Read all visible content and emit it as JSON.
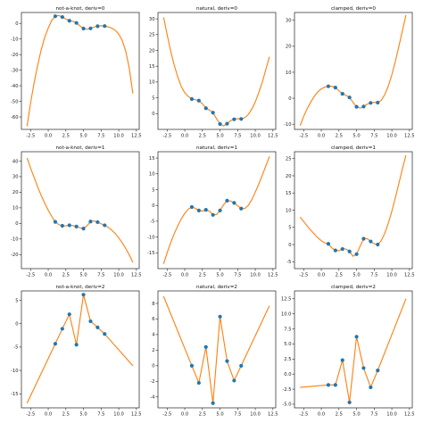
{
  "colors": {
    "curve": "#ff7f0e",
    "points": "#1f77b4",
    "frame": "#222222"
  },
  "chart_data": [
    {
      "type": "line",
      "title": "not-a-knot, deriv=0",
      "xticks": [
        -2.5,
        0.0,
        2.5,
        5.0,
        7.5,
        10.0,
        12.5
      ],
      "yticks": [
        -60,
        -50,
        -40,
        -30,
        -20,
        -10,
        0
      ],
      "xlim": [
        -3.8,
        12.9
      ],
      "ylim": [
        -68,
        7
      ],
      "points": [
        [
          1,
          4.6
        ],
        [
          2,
          4.1
        ],
        [
          3,
          1.7
        ],
        [
          4,
          0.3
        ],
        [
          5,
          -3.3
        ],
        [
          6,
          -3.2
        ],
        [
          7,
          -1.8
        ],
        [
          8,
          -1.7
        ]
      ],
      "curve": [
        [
          -3,
          -66
        ],
        [
          -2.5,
          -51
        ],
        [
          -2,
          -38
        ],
        [
          -1.5,
          -27
        ],
        [
          -1,
          -17
        ],
        [
          -0.5,
          -9
        ],
        [
          0,
          -3
        ],
        [
          0.5,
          2
        ],
        [
          1,
          4.6
        ],
        [
          1.5,
          5.1
        ],
        [
          2,
          4.1
        ],
        [
          2.5,
          2.8
        ],
        [
          3,
          1.7
        ],
        [
          3.5,
          1.3
        ],
        [
          4,
          0.3
        ],
        [
          4.5,
          -1.6
        ],
        [
          5,
          -3.3
        ],
        [
          5.5,
          -3.8
        ],
        [
          6,
          -3.2
        ],
        [
          6.5,
          -2.3
        ],
        [
          7,
          -1.8
        ],
        [
          7.5,
          -1.5
        ],
        [
          8,
          -1.7
        ],
        [
          8.5,
          -2.2
        ],
        [
          9,
          -3
        ],
        [
          9.5,
          -4.4
        ],
        [
          10,
          -6.9
        ],
        [
          10.5,
          -11
        ],
        [
          11,
          -18
        ],
        [
          11.5,
          -29
        ],
        [
          12,
          -45
        ]
      ]
    },
    {
      "type": "line",
      "title": "natural, deriv=0",
      "xticks": [
        -2.5,
        0.0,
        2.5,
        5.0,
        7.5,
        10.0,
        12.5
      ],
      "yticks": [
        0,
        5,
        10,
        15,
        20,
        25,
        30
      ],
      "xlim": [
        -3.8,
        12.9
      ],
      "ylim": [
        -5,
        32
      ],
      "points": [
        [
          1,
          4.6
        ],
        [
          2,
          4.1
        ],
        [
          3,
          1.7
        ],
        [
          4,
          0.3
        ],
        [
          5,
          -3.3
        ],
        [
          6,
          -3.2
        ],
        [
          7,
          -1.8
        ],
        [
          8,
          -1.7
        ]
      ],
      "curve": [
        [
          -3,
          30.5
        ],
        [
          -2.5,
          25
        ],
        [
          -2,
          19.8
        ],
        [
          -1.5,
          15.4
        ],
        [
          -1,
          11.6
        ],
        [
          -0.5,
          8.6
        ],
        [
          0,
          6.6
        ],
        [
          0.5,
          5.4
        ],
        [
          1,
          4.6
        ],
        [
          1.5,
          4.4
        ],
        [
          2,
          4.1
        ],
        [
          2.5,
          3.1
        ],
        [
          3,
          1.7
        ],
        [
          3.5,
          1.1
        ],
        [
          4,
          0.3
        ],
        [
          4.5,
          -1.6
        ],
        [
          5,
          -3.3
        ],
        [
          5.5,
          -3.9
        ],
        [
          6,
          -3.2
        ],
        [
          6.5,
          -2.2
        ],
        [
          7,
          -1.8
        ],
        [
          7.5,
          -1.6
        ],
        [
          8,
          -1.7
        ],
        [
          8.5,
          -1.3
        ],
        [
          9,
          -0.3
        ],
        [
          9.5,
          1.4
        ],
        [
          10,
          3.7
        ],
        [
          10.5,
          6.7
        ],
        [
          11,
          10
        ],
        [
          11.5,
          14
        ],
        [
          12,
          18
        ]
      ]
    },
    {
      "type": "line",
      "title": "clamped, deriv=0",
      "xticks": [
        -2.5,
        0.0,
        2.5,
        5.0,
        7.5,
        10.0,
        12.5
      ],
      "yticks": [
        -10,
        0,
        10,
        20,
        30
      ],
      "xlim": [
        -3.8,
        12.9
      ],
      "ylim": [
        -12,
        33
      ],
      "points": [
        [
          1,
          4.6
        ],
        [
          2,
          4.1
        ],
        [
          3,
          1.7
        ],
        [
          4,
          0.3
        ],
        [
          5,
          -3.3
        ],
        [
          6,
          -3.2
        ],
        [
          7,
          -1.8
        ],
        [
          8,
          -1.7
        ]
      ],
      "curve": [
        [
          -3,
          -10.5
        ],
        [
          -2.5,
          -7
        ],
        [
          -2,
          -4
        ],
        [
          -1.5,
          -1.5
        ],
        [
          -1,
          0.7
        ],
        [
          -0.5,
          2.4
        ],
        [
          0,
          3.6
        ],
        [
          0.5,
          4.3
        ],
        [
          1,
          4.6
        ],
        [
          1.5,
          4.6
        ],
        [
          2,
          4.1
        ],
        [
          2.5,
          2.9
        ],
        [
          3,
          1.7
        ],
        [
          3.5,
          1.1
        ],
        [
          4,
          0.3
        ],
        [
          4.5,
          -1.6
        ],
        [
          5,
          -3.3
        ],
        [
          5.5,
          -3.8
        ],
        [
          6,
          -3.2
        ],
        [
          6.5,
          -2.3
        ],
        [
          7,
          -1.8
        ],
        [
          7.5,
          -1.6
        ],
        [
          8,
          -1.7
        ],
        [
          8.5,
          -0.8
        ],
        [
          9,
          1.4
        ],
        [
          9.5,
          4.7
        ],
        [
          10,
          9
        ],
        [
          10.5,
          14.2
        ],
        [
          11,
          20
        ],
        [
          11.5,
          26
        ],
        [
          12,
          32
        ]
      ]
    },
    {
      "type": "line",
      "title": "not-a-knot, deriv=1",
      "xticks": [
        -2.5,
        0.0,
        2.5,
        5.0,
        7.5,
        10.0,
        12.5
      ],
      "yticks": [
        -20,
        -10,
        0,
        10,
        20,
        30,
        40
      ],
      "xlim": [
        -3.8,
        12.9
      ],
      "ylim": [
        -29,
        46
      ],
      "points": [
        [
          1,
          1
        ],
        [
          2,
          -1.5
        ],
        [
          3,
          -1.2
        ],
        [
          4,
          -2
        ],
        [
          5,
          -3.3
        ],
        [
          6,
          1.2
        ],
        [
          7,
          0.8
        ],
        [
          8,
          -1.2
        ]
      ],
      "curve": [
        [
          -3,
          42
        ],
        [
          -2.5,
          35.5
        ],
        [
          -2,
          29.5
        ],
        [
          -1.5,
          23.5
        ],
        [
          -1,
          18
        ],
        [
          -0.5,
          13
        ],
        [
          0,
          8.5
        ],
        [
          0.5,
          4.5
        ],
        [
          1,
          1
        ],
        [
          1.5,
          -0.8
        ],
        [
          2,
          -1.5
        ],
        [
          2.5,
          -1.6
        ],
        [
          3,
          -1.2
        ],
        [
          3.5,
          -1.4
        ],
        [
          4,
          -2
        ],
        [
          4.5,
          -2.8
        ],
        [
          5,
          -3.3
        ],
        [
          5.5,
          -1.5
        ],
        [
          6,
          1.2
        ],
        [
          6.5,
          1.6
        ],
        [
          7,
          0.8
        ],
        [
          7.5,
          -0.2
        ],
        [
          8,
          -1.2
        ],
        [
          8.5,
          -2.5
        ],
        [
          9,
          -4.3
        ],
        [
          9.5,
          -6.5
        ],
        [
          10,
          -9.3
        ],
        [
          10.5,
          -12.5
        ],
        [
          11,
          -16.2
        ],
        [
          11.5,
          -20.3
        ],
        [
          12,
          -25
        ]
      ]
    },
    {
      "type": "line",
      "title": "natural, deriv=1",
      "xticks": [
        -2.5,
        0.0,
        2.5,
        5.0,
        7.5,
        10.0,
        12.5
      ],
      "yticks": [
        -15,
        -10,
        -5,
        0,
        5,
        10,
        15
      ],
      "xlim": [
        -3.8,
        12.9
      ],
      "ylim": [
        -20,
        17
      ],
      "points": [
        [
          1,
          -0.5
        ],
        [
          2,
          -1.6
        ],
        [
          3,
          -1.4
        ],
        [
          4,
          -3
        ],
        [
          5,
          -1.6
        ],
        [
          6,
          1.5
        ],
        [
          7,
          0.8
        ],
        [
          8,
          -1
        ]
      ],
      "curve": [
        [
          -3,
          -18.5
        ],
        [
          -2.5,
          -15
        ],
        [
          -2,
          -11.8
        ],
        [
          -1.5,
          -9
        ],
        [
          -1,
          -6.5
        ],
        [
          -0.5,
          -4.3
        ],
        [
          0,
          -2.5
        ],
        [
          0.5,
          -1.2
        ],
        [
          1,
          -0.5
        ],
        [
          1.5,
          -0.9
        ],
        [
          2,
          -1.6
        ],
        [
          2.5,
          -1.8
        ],
        [
          3,
          -1.4
        ],
        [
          3.5,
          -1.8
        ],
        [
          4,
          -3
        ],
        [
          4.5,
          -2.9
        ],
        [
          5,
          -1.6
        ],
        [
          5.5,
          0.2
        ],
        [
          6,
          1.5
        ],
        [
          6.5,
          1.4
        ],
        [
          7,
          0.8
        ],
        [
          7.5,
          -0.1
        ],
        [
          8,
          -1
        ],
        [
          8.5,
          -1
        ],
        [
          9,
          0
        ],
        [
          9.5,
          1.8
        ],
        [
          10,
          4.2
        ],
        [
          10.5,
          6.8
        ],
        [
          11,
          9.6
        ],
        [
          11.5,
          12.5
        ],
        [
          12,
          15.5
        ]
      ]
    },
    {
      "type": "line",
      "title": "clamped, deriv=1",
      "xticks": [
        -2.5,
        0.0,
        2.5,
        5.0,
        7.5,
        10.0,
        12.5
      ],
      "yticks": [
        -5,
        0,
        5,
        10,
        15,
        20,
        25
      ],
      "xlim": [
        -3.8,
        12.9
      ],
      "ylim": [
        -7,
        27
      ],
      "points": [
        [
          1,
          0.2
        ],
        [
          2,
          -1.7
        ],
        [
          3,
          -1.3
        ],
        [
          4,
          -2
        ],
        [
          5,
          -2.8
        ],
        [
          6,
          1.7
        ],
        [
          7,
          0.9
        ],
        [
          8,
          0
        ]
      ],
      "curve": [
        [
          -3,
          8
        ],
        [
          -2.5,
          6.7
        ],
        [
          -2,
          5.4
        ],
        [
          -1.5,
          4.2
        ],
        [
          -1,
          3.1
        ],
        [
          -0.5,
          2
        ],
        [
          0,
          1.1
        ],
        [
          0.5,
          0.5
        ],
        [
          1,
          0.2
        ],
        [
          1.5,
          -1
        ],
        [
          2,
          -1.7
        ],
        [
          2.5,
          -1.8
        ],
        [
          3,
          -1.3
        ],
        [
          3.5,
          -1.3
        ],
        [
          4,
          -2
        ],
        [
          4.5,
          -3.4
        ],
        [
          5,
          -2.8
        ],
        [
          5.5,
          -0.5
        ],
        [
          6,
          1.7
        ],
        [
          6.5,
          1.7
        ],
        [
          7,
          0.9
        ],
        [
          7.5,
          0.2
        ],
        [
          8,
          0
        ],
        [
          8.5,
          1.1
        ],
        [
          9,
          3.3
        ],
        [
          9.5,
          6.2
        ],
        [
          10,
          9.7
        ],
        [
          10.5,
          13.6
        ],
        [
          11,
          17.8
        ],
        [
          11.5,
          22
        ],
        [
          12,
          26
        ]
      ]
    },
    {
      "type": "line",
      "title": "not-a-knot, deriv=2",
      "xticks": [
        -2.5,
        0.0,
        2.5,
        5.0,
        7.5,
        10.0,
        12.5
      ],
      "yticks": [
        -15,
        -10,
        -5,
        0,
        5
      ],
      "xlim": [
        -3.8,
        12.9
      ],
      "ylim": [
        -18,
        7
      ],
      "points": [
        [
          1,
          -4.3
        ],
        [
          2,
          -1.1
        ],
        [
          3,
          2
        ],
        [
          4,
          -4.5
        ],
        [
          5,
          6.2
        ],
        [
          6,
          0.5
        ],
        [
          7,
          -0.8
        ],
        [
          8,
          -2.2
        ]
      ],
      "curve": [
        [
          -3,
          -17
        ],
        [
          1,
          -4.3
        ],
        [
          2,
          -1.1
        ],
        [
          3,
          2
        ],
        [
          4,
          -4.5
        ],
        [
          5,
          6.2
        ],
        [
          6,
          0.5
        ],
        [
          7,
          -0.8
        ],
        [
          8,
          -2.2
        ],
        [
          12,
          -9
        ]
      ]
    },
    {
      "type": "line",
      "title": "natural, deriv=2",
      "xticks": [
        -2.5,
        0.0,
        2.5,
        5.0,
        7.5,
        10.0,
        12.5
      ],
      "yticks": [
        -4,
        -2,
        0,
        2,
        4,
        6,
        8
      ],
      "xlim": [
        -3.8,
        12.9
      ],
      "ylim": [
        -5.4,
        9.6
      ],
      "points": [
        [
          1,
          0
        ],
        [
          2,
          -2.2
        ],
        [
          3,
          2.4
        ],
        [
          4,
          -4.8
        ],
        [
          5,
          6.3
        ],
        [
          6,
          0.6
        ],
        [
          7,
          -1.9
        ],
        [
          8,
          0
        ]
      ],
      "curve": [
        [
          -3,
          8.9
        ],
        [
          1,
          0
        ],
        [
          2,
          -2.2
        ],
        [
          3,
          2.4
        ],
        [
          4,
          -4.8
        ],
        [
          5,
          6.3
        ],
        [
          6,
          0.6
        ],
        [
          7,
          -1.9
        ],
        [
          8,
          0
        ],
        [
          12,
          7.7
        ]
      ]
    },
    {
      "type": "line",
      "title": "clamped, deriv=2",
      "xticks": [
        -2.5,
        0.0,
        2.5,
        5.0,
        7.5,
        10.0,
        12.5
      ],
      "yticks": [
        -5.0,
        -2.5,
        0.0,
        2.5,
        5.0,
        7.5,
        10.0,
        12.5
      ],
      "xlim": [
        -3.8,
        12.9
      ],
      "ylim": [
        -5.6,
        13.8
      ],
      "points": [
        [
          1,
          -1.8
        ],
        [
          2,
          -1.8
        ],
        [
          3,
          2.3
        ],
        [
          4,
          -4.7
        ],
        [
          5,
          6.2
        ],
        [
          6,
          1
        ],
        [
          7,
          -2.2
        ],
        [
          8,
          0.6
        ]
      ],
      "curve": [
        [
          -3,
          -2.2
        ],
        [
          1,
          -1.8
        ],
        [
          2,
          -1.8
        ],
        [
          3,
          2.3
        ],
        [
          4,
          -4.7
        ],
        [
          5,
          6.2
        ],
        [
          6,
          1
        ],
        [
          7,
          -2.2
        ],
        [
          8,
          0.6
        ],
        [
          12,
          12.5
        ]
      ]
    }
  ]
}
